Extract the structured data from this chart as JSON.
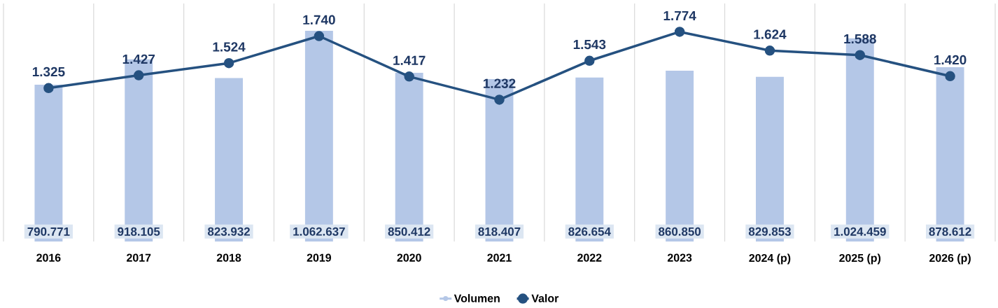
{
  "chart_data": {
    "type": "bar",
    "categories": [
      "2016",
      "2017",
      "2018",
      "2019",
      "2020",
      "2021",
      "2022",
      "2023",
      "2024 (p)",
      "2025 (p)",
      "2026 (p)"
    ],
    "series": [
      {
        "name": "Volumen",
        "color": "#b4c7e7",
        "values": [
          790771,
          918105,
          823932,
          1062637,
          850412,
          818407,
          826654,
          860850,
          829853,
          1024459,
          878612
        ],
        "value_labels": [
          "790.771",
          "918.105",
          "823.932",
          "1.062.637",
          "850.412",
          "818.407",
          "826.654",
          "860.850",
          "829.853",
          "1.024.459",
          "878.612"
        ]
      },
      {
        "name": "Valor",
        "type": "line",
        "axis": "y2",
        "color": "#255180",
        "values": [
          1325,
          1427,
          1524,
          1740,
          1417,
          1232,
          1543,
          1774,
          1624,
          1588,
          1420
        ],
        "value_labels": [
          "1.325",
          "1.427",
          "1.524",
          "1.740",
          "1.417",
          "1.232",
          "1.543",
          "1.774",
          "1.624",
          "1.588",
          "1.420"
        ]
      }
    ],
    "ylim": [
      0,
      1200000
    ],
    "y2lim": [
      100,
      2000
    ],
    "grid": "x",
    "legend": "bottom",
    "marker": "circle"
  }
}
